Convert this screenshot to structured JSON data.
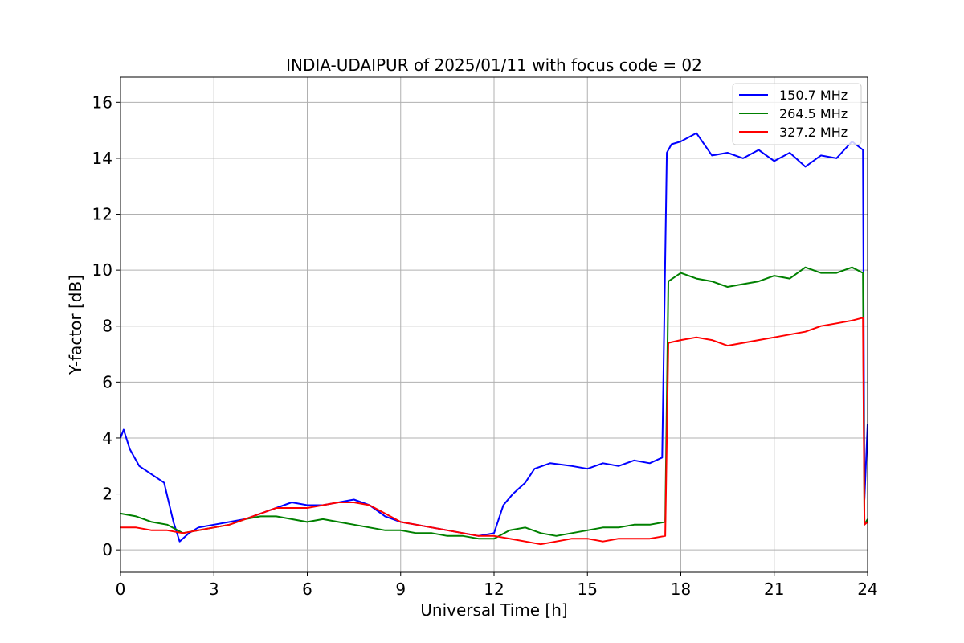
{
  "chart_data": {
    "type": "line",
    "title": "INDIA-UDAIPUR of 2025/01/11 with focus code = 02",
    "xlabel": "Universal Time [h]",
    "ylabel": "Y-factor [dB]",
    "xlim": [
      0,
      24
    ],
    "ylim": [
      -0.8,
      16.9
    ],
    "xticks": [
      0,
      3,
      6,
      9,
      12,
      15,
      18,
      21,
      24
    ],
    "yticks": [
      0,
      2,
      4,
      6,
      8,
      10,
      12,
      14,
      16
    ],
    "grid": true,
    "legend_position": "top-right",
    "series": [
      {
        "name": "150.7 MHz",
        "color": "#0000ff",
        "x": [
          0,
          0.1,
          0.3,
          0.6,
          1.0,
          1.4,
          1.7,
          1.9,
          2.2,
          2.5,
          3.0,
          3.5,
          4.0,
          4.5,
          5.0,
          5.5,
          6.0,
          6.5,
          7.0,
          7.5,
          8.0,
          8.5,
          9.0,
          9.5,
          10.0,
          10.5,
          11.0,
          11.5,
          12.0,
          12.3,
          12.6,
          13.0,
          13.3,
          13.8,
          14.5,
          15.0,
          15.5,
          16.0,
          16.5,
          17.0,
          17.4,
          17.55,
          17.7,
          18.0,
          18.5,
          19.0,
          19.5,
          20.0,
          20.5,
          21.0,
          21.5,
          22.0,
          22.5,
          23.0,
          23.5,
          23.85,
          23.9,
          24.0
        ],
        "y": [
          4.0,
          4.3,
          3.6,
          3.0,
          2.7,
          2.4,
          1.0,
          0.3,
          0.6,
          0.8,
          0.9,
          1.0,
          1.1,
          1.3,
          1.5,
          1.7,
          1.6,
          1.6,
          1.7,
          1.8,
          1.6,
          1.2,
          1.0,
          0.9,
          0.8,
          0.7,
          0.6,
          0.5,
          0.6,
          1.6,
          2.0,
          2.4,
          2.9,
          3.1,
          3.0,
          2.9,
          3.1,
          3.0,
          3.2,
          3.1,
          3.3,
          14.2,
          14.5,
          14.6,
          14.9,
          14.1,
          14.2,
          14.0,
          14.3,
          13.9,
          14.2,
          13.7,
          14.1,
          14.0,
          14.6,
          14.3,
          1.8,
          4.5
        ]
      },
      {
        "name": "264.5 MHz",
        "color": "#008000",
        "x": [
          0,
          0.5,
          1.0,
          1.5,
          2.0,
          2.5,
          3.0,
          3.5,
          4.0,
          4.5,
          5.0,
          5.5,
          6.0,
          6.5,
          7.0,
          7.5,
          8.0,
          8.5,
          9.0,
          9.5,
          10.0,
          10.5,
          11.0,
          11.5,
          12.0,
          12.5,
          13.0,
          13.5,
          14.0,
          14.5,
          15.0,
          15.5,
          16.0,
          16.5,
          17.0,
          17.5,
          17.6,
          18.0,
          18.5,
          19.0,
          19.5,
          20.0,
          20.5,
          21.0,
          21.5,
          22.0,
          22.5,
          23.0,
          23.5,
          23.85,
          23.9,
          24.0
        ],
        "y": [
          1.3,
          1.2,
          1.0,
          0.9,
          0.6,
          0.7,
          0.8,
          0.9,
          1.1,
          1.2,
          1.2,
          1.1,
          1.0,
          1.1,
          1.0,
          0.9,
          0.8,
          0.7,
          0.7,
          0.6,
          0.6,
          0.5,
          0.5,
          0.4,
          0.4,
          0.7,
          0.8,
          0.6,
          0.5,
          0.6,
          0.7,
          0.8,
          0.8,
          0.9,
          0.9,
          1.0,
          9.6,
          9.9,
          9.7,
          9.6,
          9.4,
          9.5,
          9.6,
          9.8,
          9.7,
          10.1,
          9.9,
          9.9,
          10.1,
          9.9,
          0.9,
          1.1
        ]
      },
      {
        "name": "327.2 MHz",
        "color": "#ff0000",
        "x": [
          0,
          0.5,
          1.0,
          1.5,
          2.0,
          2.5,
          3.0,
          3.5,
          4.0,
          4.5,
          5.0,
          5.5,
          6.0,
          6.5,
          7.0,
          7.5,
          8.0,
          8.5,
          9.0,
          9.5,
          10.0,
          10.5,
          11.0,
          11.5,
          12.0,
          12.5,
          13.0,
          13.5,
          14.0,
          14.5,
          15.0,
          15.5,
          16.0,
          16.5,
          17.0,
          17.5,
          17.6,
          18.0,
          18.5,
          19.0,
          19.5,
          20.0,
          20.5,
          21.0,
          21.5,
          22.0,
          22.5,
          23.0,
          23.5,
          23.85,
          23.9,
          24.0
        ],
        "y": [
          0.8,
          0.8,
          0.7,
          0.7,
          0.6,
          0.7,
          0.8,
          0.9,
          1.1,
          1.3,
          1.5,
          1.5,
          1.5,
          1.6,
          1.7,
          1.7,
          1.6,
          1.3,
          1.0,
          0.9,
          0.8,
          0.7,
          0.6,
          0.5,
          0.5,
          0.4,
          0.3,
          0.2,
          0.3,
          0.4,
          0.4,
          0.3,
          0.4,
          0.4,
          0.4,
          0.5,
          7.4,
          7.5,
          7.6,
          7.5,
          7.3,
          7.4,
          7.5,
          7.6,
          7.7,
          7.8,
          8.0,
          8.1,
          8.2,
          8.3,
          0.9,
          1.0
        ]
      }
    ]
  }
}
